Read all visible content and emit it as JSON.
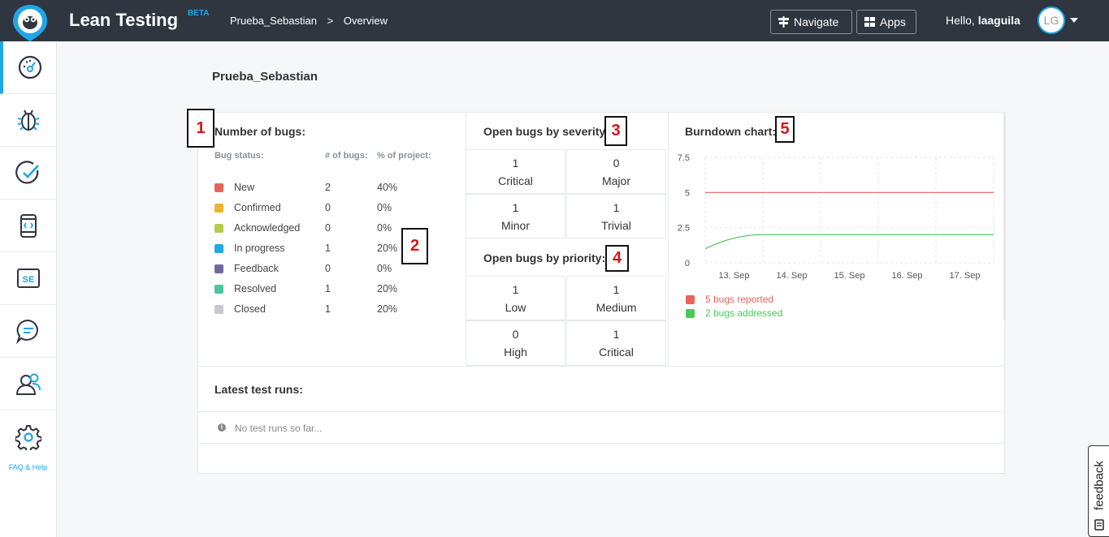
{
  "header": {
    "app_title": "Lean Testing",
    "beta": "BETA",
    "breadcrumb": [
      "Prueba_Sebastian",
      ">",
      "Overview"
    ],
    "navigate_label": "Navigate",
    "apps_label": "Apps",
    "greeting": "Hello, ",
    "username": "laaguila",
    "avatar_initials": "LG"
  },
  "sidebar": {
    "items": [
      "dashboard-icon",
      "bug-icon",
      "check-icon",
      "mobile-code-icon",
      "se-icon",
      "chat-icon",
      "users-icon",
      "gear-icon"
    ],
    "faq_label": "FAQ & Help"
  },
  "page": {
    "title": "Prueba_Sebastian"
  },
  "bugs": {
    "title": "Number of bugs:",
    "col_status": "Bug status:",
    "col_count": "# of bugs:",
    "col_pct": "% of project:",
    "rows": [
      {
        "name": "New",
        "count": "2",
        "pct": "40%",
        "color": "#e8645a"
      },
      {
        "name": "Confirmed",
        "count": "0",
        "pct": "0%",
        "color": "#f0b429"
      },
      {
        "name": "Acknowledged",
        "count": "0",
        "pct": "0%",
        "color": "#b3cc4e"
      },
      {
        "name": "In progress",
        "count": "1",
        "pct": "20%",
        "color": "#1eaae8"
      },
      {
        "name": "Feedback",
        "count": "0",
        "pct": "0%",
        "color": "#6f6a9c"
      },
      {
        "name": "Resolved",
        "count": "1",
        "pct": "20%",
        "color": "#4cc6a0"
      },
      {
        "name": "Closed",
        "count": "1",
        "pct": "20%",
        "color": "#c5c8cc"
      }
    ]
  },
  "severity": {
    "title": "Open bugs by severity",
    "cells": [
      {
        "n": "1",
        "label": "Critical"
      },
      {
        "n": "0",
        "label": "Major"
      },
      {
        "n": "1",
        "label": "Minor"
      },
      {
        "n": "1",
        "label": "Trivial"
      }
    ]
  },
  "priority": {
    "title": "Open bugs by priority:",
    "cells": [
      {
        "n": "1",
        "label": "Low"
      },
      {
        "n": "1",
        "label": "Medium"
      },
      {
        "n": "0",
        "label": "High"
      },
      {
        "n": "1",
        "label": "Critical"
      }
    ]
  },
  "burndown": {
    "title": "Burndown chart:",
    "legend": [
      {
        "label": "5 bugs reported",
        "color": "#e8645a"
      },
      {
        "label": "2 bugs addressed",
        "color": "#4cc65a"
      }
    ]
  },
  "chart_data": {
    "type": "line",
    "title": "Burndown chart:",
    "x": [
      "13. Sep",
      "14. Sep",
      "15. Sep",
      "16. Sep",
      "17. Sep"
    ],
    "y_ticks": [
      "0",
      "2.5",
      "5",
      "7.5"
    ],
    "ylim": [
      0,
      7.5
    ],
    "grid": true,
    "legend_position": "bottom-left",
    "series": [
      {
        "name": "5 bugs reported",
        "color": "#e8645a",
        "points": [
          [
            0,
            5
          ],
          [
            5,
            5
          ]
        ]
      },
      {
        "name": "2 bugs addressed",
        "color": "#4cc65a",
        "points": [
          [
            0,
            1
          ],
          [
            0.5,
            1.6
          ],
          [
            1,
            2
          ],
          [
            5,
            2
          ]
        ]
      }
    ]
  },
  "markers": [
    "1",
    "2",
    "3",
    "4",
    "5"
  ],
  "latest": {
    "title": "Latest test runs:",
    "empty": "No test runs so far..."
  },
  "feedback_label": "feedback"
}
